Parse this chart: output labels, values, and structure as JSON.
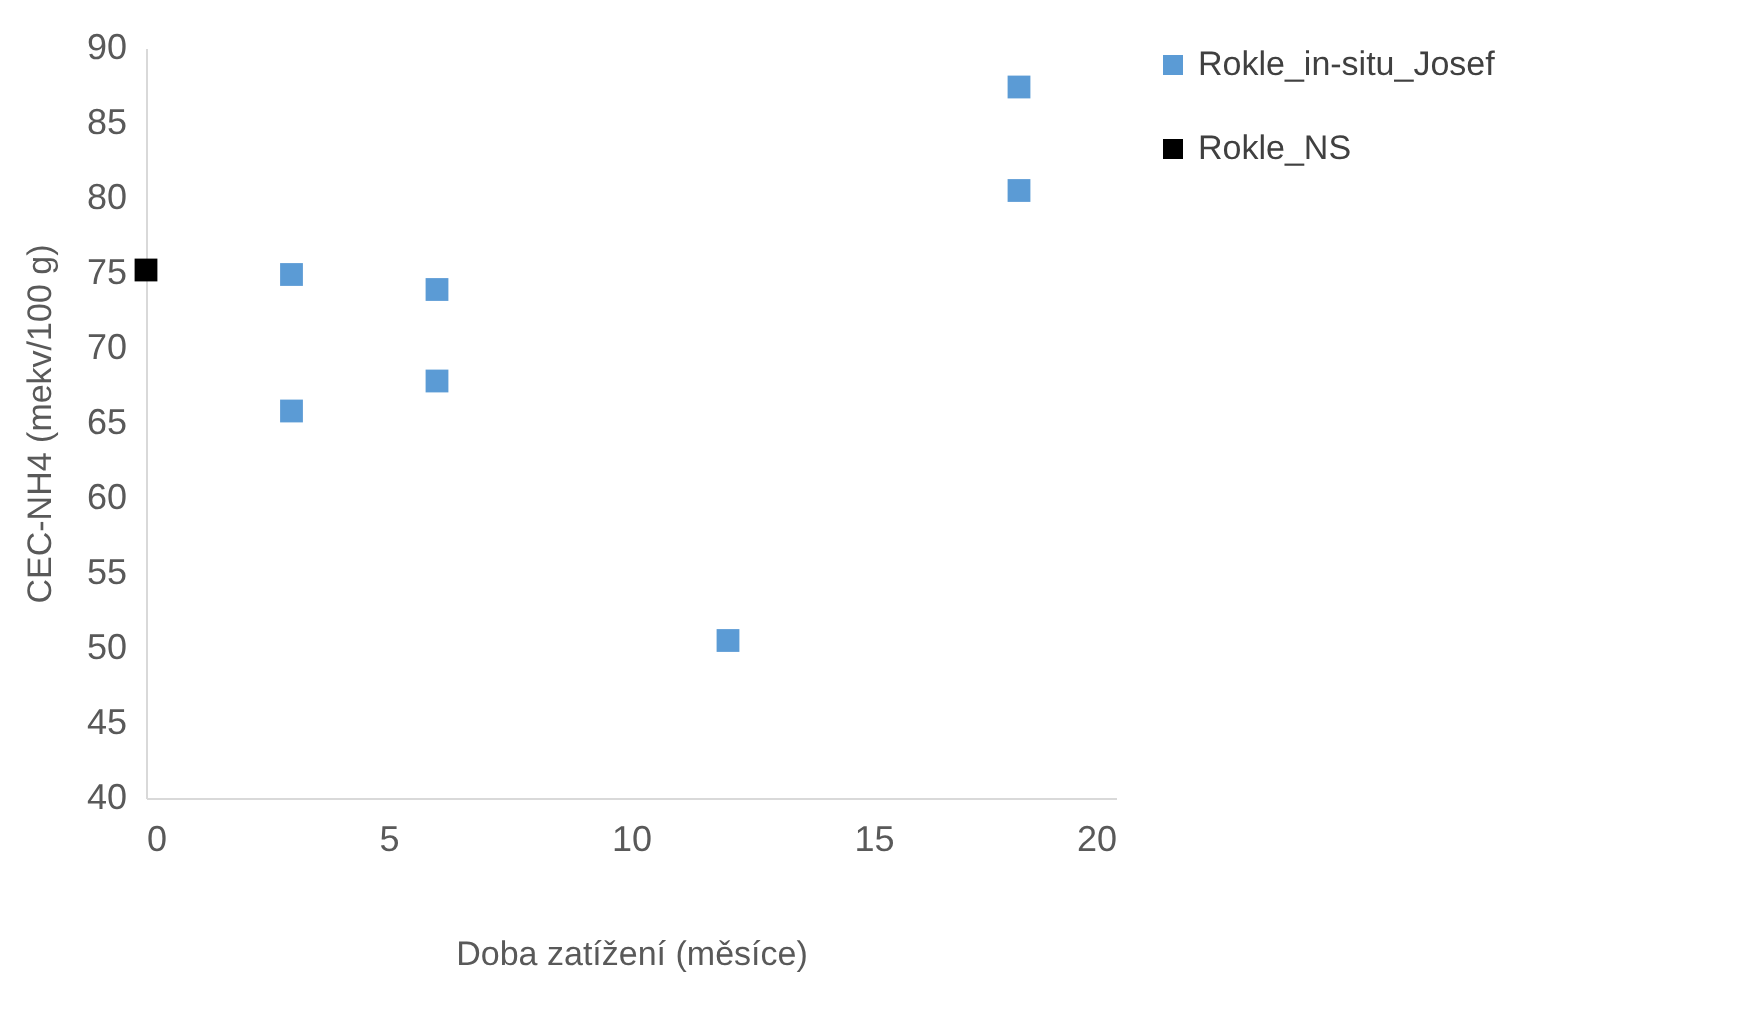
{
  "chart_data": {
    "type": "scatter",
    "xlabel": "Doba zatížení  (měsíce)",
    "ylabel": "CEC-NH4  (mekv/100 g)",
    "series": [
      {
        "name": "Rokle_in-situ_Josef",
        "color": "#5b9bd5",
        "x": [
          3,
          3,
          6,
          6,
          12,
          18,
          18
        ],
        "values": [
          74.9,
          65.8,
          73.9,
          67.8,
          50.5,
          87.4,
          80.5
        ]
      },
      {
        "name": "Rokle_NS",
        "color": "#000000",
        "x": [
          0
        ],
        "values": [
          75.2
        ]
      }
    ],
    "xlim": [
      0,
      20
    ],
    "xticks": [
      0,
      5,
      10,
      15,
      20
    ],
    "ylim": [
      40,
      90
    ],
    "yticks": [
      40,
      45,
      50,
      55,
      60,
      65,
      70,
      75,
      80,
      85,
      90
    ],
    "grid": false,
    "legend": "right",
    "marker": "square"
  }
}
